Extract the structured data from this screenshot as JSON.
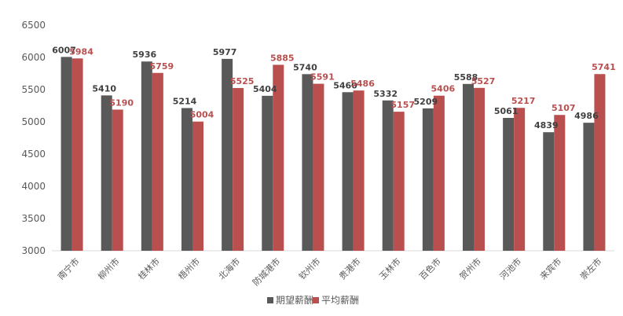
{
  "chart_data": {
    "type": "bar",
    "title": "",
    "xlabel": "",
    "ylabel": "",
    "ylim": [
      3000,
      6500
    ],
    "yticks": [
      3000,
      3500,
      4000,
      4500,
      5000,
      5500,
      6000,
      6500
    ],
    "grid": false,
    "legend_position": "bottom",
    "categories": [
      "南宁市",
      "柳州市",
      "桂林市",
      "梧州市",
      "北海市",
      "防城港市",
      "钦州市",
      "贵港市",
      "玉林市",
      "百色市",
      "贺州市",
      "河池市",
      "来宾市",
      "崇左市"
    ],
    "series": [
      {
        "name": "期望薪酬",
        "color": "#595959",
        "label_color": "#404040",
        "values": [
          6007,
          5410,
          5936,
          5214,
          5977,
          5404,
          5740,
          5460,
          5332,
          5209,
          5588,
          5061,
          4839,
          4986
        ]
      },
      {
        "name": "平均薪酬",
        "color": "#b9504f",
        "label_color": "#b9504f",
        "values": [
          5984,
          5190,
          5759,
          5004,
          5525,
          5885,
          5591,
          5486,
          5157,
          5406,
          5527,
          5217,
          5107,
          5741
        ]
      }
    ]
  }
}
